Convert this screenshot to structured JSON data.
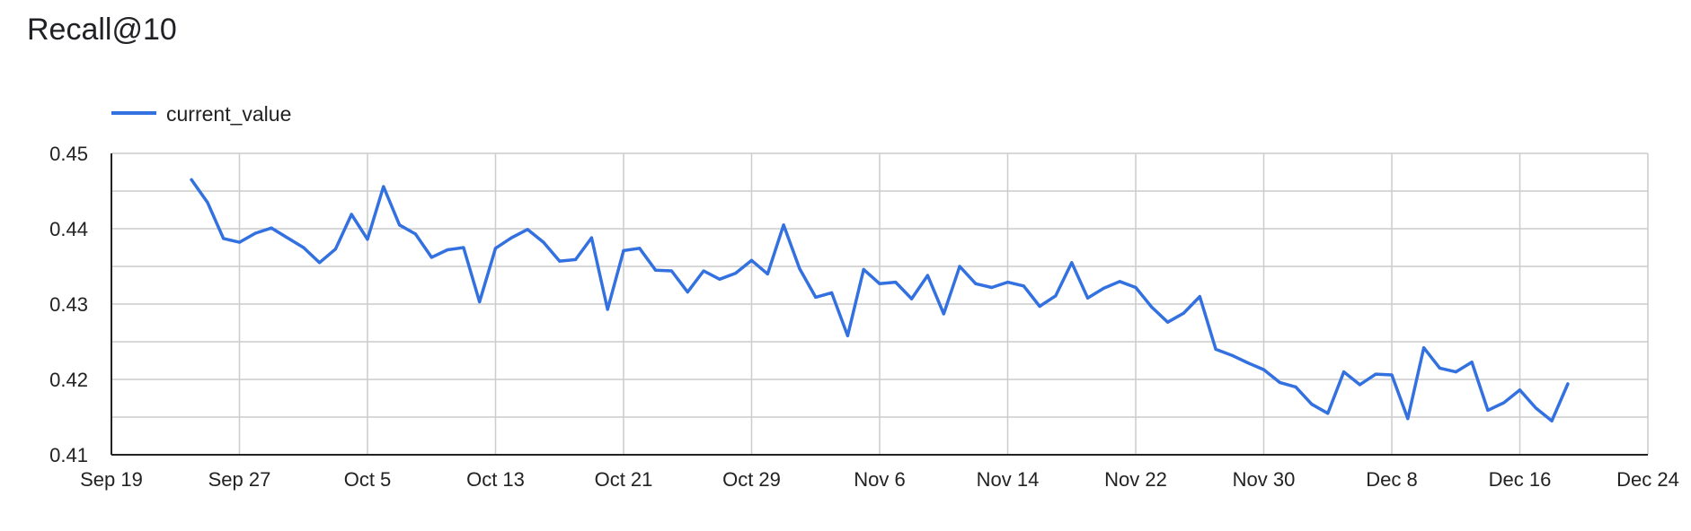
{
  "chart_data": {
    "type": "line",
    "title": "Recall@10",
    "xlabel": "",
    "ylabel": "",
    "x_ticks": [
      "Sep 19",
      "Sep 27",
      "Oct 5",
      "Oct 13",
      "Oct 21",
      "Oct 29",
      "Nov 6",
      "Nov 14",
      "Nov 22",
      "Nov 30",
      "Dec 8",
      "Dec 16",
      "Dec 24"
    ],
    "y_ticks": [
      "0.41",
      "0.42",
      "0.43",
      "0.44",
      "0.45"
    ],
    "xlim": [
      "Sep 19",
      "Dec 24"
    ],
    "ylim": [
      0.41,
      0.45
    ],
    "grid": true,
    "legend_position": "top-left",
    "colors": {
      "series": "#3370e0",
      "grid": "#cccccc",
      "axis": "#222222"
    },
    "series": [
      {
        "name": "current_value",
        "x": [
          "Sep 24",
          "Sep 25",
          "Sep 26",
          "Sep 27",
          "Sep 28",
          "Sep 29",
          "Sep 30",
          "Oct 1",
          "Oct 2",
          "Oct 3",
          "Oct 4",
          "Oct 5",
          "Oct 6",
          "Oct 7",
          "Oct 8",
          "Oct 9",
          "Oct 10",
          "Oct 11",
          "Oct 12",
          "Oct 13",
          "Oct 14",
          "Oct 15",
          "Oct 16",
          "Oct 17",
          "Oct 18",
          "Oct 19",
          "Oct 20",
          "Oct 21",
          "Oct 22",
          "Oct 23",
          "Oct 24",
          "Oct 25",
          "Oct 26",
          "Oct 27",
          "Oct 28",
          "Oct 29",
          "Oct 30",
          "Oct 31",
          "Nov 1",
          "Nov 2",
          "Nov 3",
          "Nov 4",
          "Nov 5",
          "Nov 6",
          "Nov 7",
          "Nov 8",
          "Nov 9",
          "Nov 10",
          "Nov 11",
          "Nov 12",
          "Nov 13",
          "Nov 14",
          "Nov 15",
          "Nov 16",
          "Nov 17",
          "Nov 18",
          "Nov 19",
          "Nov 20",
          "Nov 21",
          "Nov 22",
          "Nov 23",
          "Nov 24",
          "Nov 25",
          "Nov 26",
          "Nov 27",
          "Nov 28",
          "Nov 29",
          "Nov 30",
          "Dec 1",
          "Dec 2",
          "Dec 3",
          "Dec 4",
          "Dec 5",
          "Dec 6",
          "Dec 7",
          "Dec 8",
          "Dec 9",
          "Dec 10",
          "Dec 11",
          "Dec 12",
          "Dec 13",
          "Dec 14",
          "Dec 15",
          "Dec 16",
          "Dec 17",
          "Dec 18",
          "Dec 19"
        ],
        "values": [
          0.4465,
          0.4435,
          0.4387,
          0.4382,
          0.4394,
          0.4401,
          0.4388,
          0.4375,
          0.4355,
          0.4373,
          0.4419,
          0.4386,
          0.4456,
          0.4405,
          0.4393,
          0.4362,
          0.4372,
          0.4375,
          0.4303,
          0.4374,
          0.4388,
          0.4399,
          0.4382,
          0.4357,
          0.4359,
          0.4388,
          0.4293,
          0.4371,
          0.4374,
          0.4345,
          0.4344,
          0.4316,
          0.4344,
          0.4333,
          0.4341,
          0.4358,
          0.434,
          0.4405,
          0.4347,
          0.4309,
          0.4315,
          0.4258,
          0.4346,
          0.4327,
          0.4329,
          0.4307,
          0.4338,
          0.4287,
          0.435,
          0.4327,
          0.4322,
          0.4329,
          0.4324,
          0.4297,
          0.4311,
          0.4355,
          0.4308,
          0.4321,
          0.433,
          0.4322,
          0.4296,
          0.4276,
          0.4288,
          0.431,
          0.424,
          0.4232,
          0.4222,
          0.4213,
          0.4196,
          0.419,
          0.4167,
          0.4155,
          0.421,
          0.4193,
          0.4207,
          0.4206,
          0.4148,
          0.4242,
          0.4215,
          0.421,
          0.4223,
          0.4159,
          0.4169,
          0.4186,
          0.4162,
          0.4145,
          0.4194
        ]
      }
    ]
  }
}
